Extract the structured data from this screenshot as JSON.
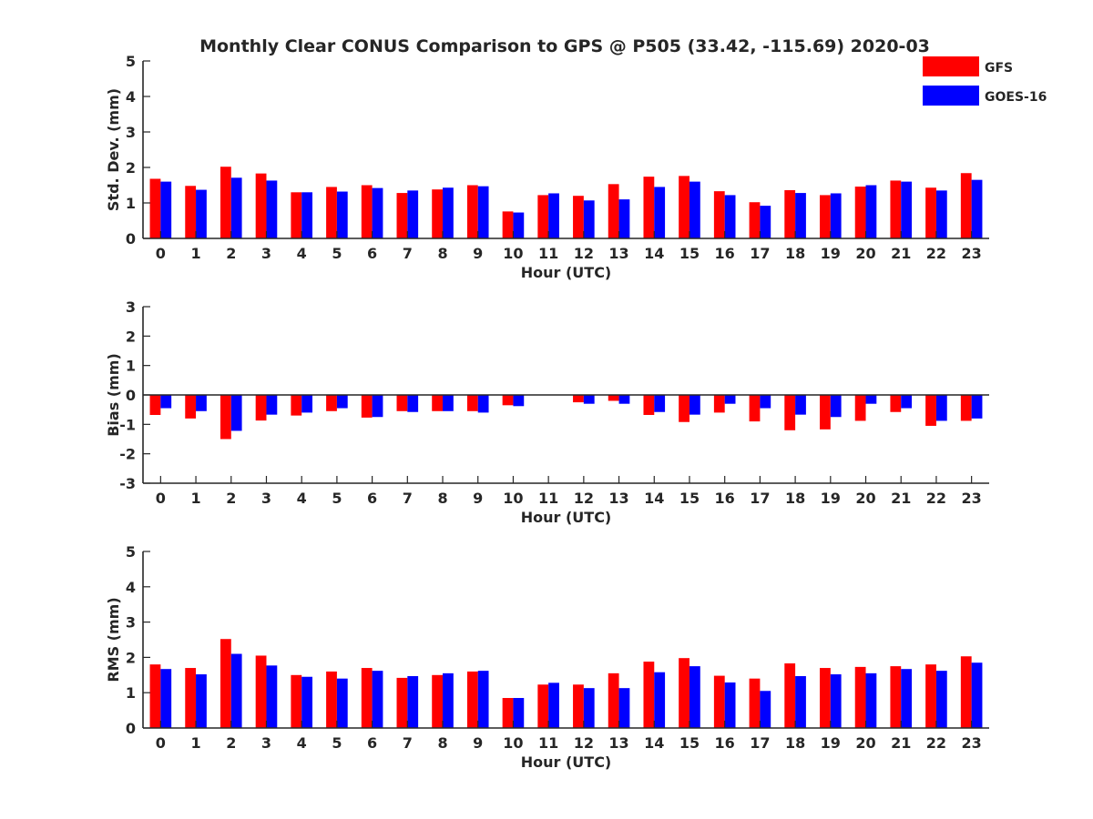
{
  "chart_data": [
    {
      "type": "bar",
      "title": "Monthly Clear CONUS Comparison to GPS @ P505 (33.42, -115.69) 2020-03",
      "xlabel": "Hour (UTC)",
      "ylabel": "Std. Dev. (mm)",
      "ylim": [
        0,
        5
      ],
      "yticks": [
        0,
        1,
        2,
        3,
        4,
        5
      ],
      "categories": [
        "0",
        "1",
        "2",
        "3",
        "4",
        "5",
        "6",
        "7",
        "8",
        "9",
        "10",
        "11",
        "12",
        "13",
        "14",
        "15",
        "16",
        "17",
        "18",
        "19",
        "20",
        "21",
        "22",
        "23"
      ],
      "legend": {
        "placement": "top-right"
      },
      "series": [
        {
          "name": "GFS",
          "color": "#ff0000",
          "values": [
            1.68,
            1.48,
            2.02,
            1.83,
            1.3,
            1.45,
            1.5,
            1.28,
            1.38,
            1.5,
            0.76,
            1.22,
            1.2,
            1.53,
            1.74,
            1.76,
            1.33,
            1.02,
            1.36,
            1.22,
            1.46,
            1.63,
            1.43,
            1.84
          ]
        },
        {
          "name": "GOES-16",
          "color": "#0000ff",
          "values": [
            1.6,
            1.37,
            1.71,
            1.63,
            1.3,
            1.32,
            1.42,
            1.35,
            1.43,
            1.47,
            0.73,
            1.27,
            1.07,
            1.1,
            1.45,
            1.6,
            1.22,
            0.92,
            1.28,
            1.27,
            1.5,
            1.6,
            1.35,
            1.65
          ]
        }
      ]
    },
    {
      "type": "bar",
      "xlabel": "Hour (UTC)",
      "ylabel": "Bias (mm)",
      "ylim": [
        -3,
        3
      ],
      "yticks": [
        -3,
        -2,
        -1,
        0,
        1,
        2,
        3
      ],
      "zero_line": true,
      "categories": [
        "0",
        "1",
        "2",
        "3",
        "4",
        "5",
        "6",
        "7",
        "8",
        "9",
        "10",
        "11",
        "12",
        "13",
        "14",
        "15",
        "16",
        "17",
        "18",
        "19",
        "20",
        "21",
        "22",
        "23"
      ],
      "series": [
        {
          "name": "GFS",
          "color": "#ff0000",
          "values": [
            -0.68,
            -0.8,
            -1.5,
            -0.87,
            -0.7,
            -0.55,
            -0.77,
            -0.55,
            -0.55,
            -0.55,
            -0.35,
            0,
            -0.25,
            -0.2,
            -0.68,
            -0.92,
            -0.6,
            -0.9,
            -1.2,
            -1.17,
            -0.88,
            -0.58,
            -1.05,
            -0.88
          ]
        },
        {
          "name": "GOES-16",
          "color": "#0000ff",
          "values": [
            -0.45,
            -0.55,
            -1.22,
            -0.67,
            -0.6,
            -0.45,
            -0.75,
            -0.58,
            -0.55,
            -0.6,
            -0.38,
            0,
            -0.3,
            -0.3,
            -0.58,
            -0.67,
            -0.3,
            -0.45,
            -0.67,
            -0.75,
            -0.3,
            -0.45,
            -0.88,
            -0.8
          ]
        }
      ]
    },
    {
      "type": "bar",
      "xlabel": "Hour (UTC)",
      "ylabel": "RMS (mm)",
      "ylim": [
        0,
        5
      ],
      "yticks": [
        0,
        1,
        2,
        3,
        4,
        5
      ],
      "categories": [
        "0",
        "1",
        "2",
        "3",
        "4",
        "5",
        "6",
        "7",
        "8",
        "9",
        "10",
        "11",
        "12",
        "13",
        "14",
        "15",
        "16",
        "17",
        "18",
        "19",
        "20",
        "21",
        "22",
        "23"
      ],
      "series": [
        {
          "name": "GFS",
          "color": "#ff0000",
          "values": [
            1.8,
            1.7,
            2.52,
            2.05,
            1.5,
            1.6,
            1.7,
            1.42,
            1.5,
            1.6,
            0.85,
            1.23,
            1.23,
            1.55,
            1.88,
            1.98,
            1.48,
            1.4,
            1.83,
            1.7,
            1.73,
            1.75,
            1.8,
            2.03
          ]
        },
        {
          "name": "GOES-16",
          "color": "#0000ff",
          "values": [
            1.67,
            1.52,
            2.1,
            1.77,
            1.45,
            1.4,
            1.62,
            1.47,
            1.55,
            1.62,
            0.85,
            1.28,
            1.13,
            1.13,
            1.58,
            1.75,
            1.29,
            1.05,
            1.47,
            1.52,
            1.55,
            1.67,
            1.62,
            1.85
          ]
        }
      ]
    }
  ]
}
